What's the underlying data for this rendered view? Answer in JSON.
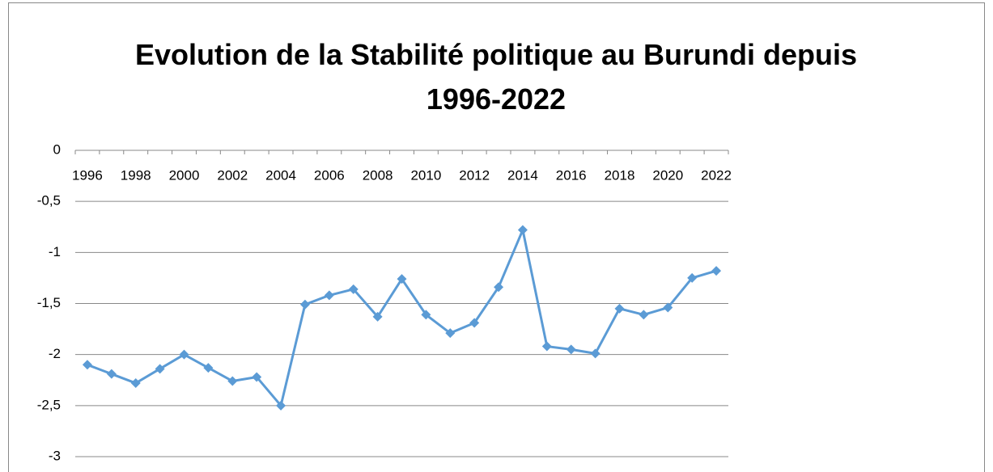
{
  "chart_data": {
    "type": "line",
    "title": "Evolution de la Stabilité politique au Burundi depuis 1996-2022",
    "categories": [
      "1996",
      null,
      "1998",
      null,
      "2000",
      null,
      "2002",
      null,
      "2004",
      null,
      "2006",
      null,
      "2008",
      null,
      "2010",
      null,
      "2012",
      null,
      "2014",
      null,
      "2016",
      null,
      "2018",
      null,
      "2020",
      null,
      "2022"
    ],
    "series": [
      {
        "name": "Stabilité politique",
        "color": "#5b9bd5",
        "values": [
          -2.1,
          -2.19,
          -2.28,
          -2.14,
          -2.0,
          -2.13,
          -2.26,
          -2.22,
          -2.5,
          -1.51,
          -1.42,
          -1.36,
          -1.63,
          -1.26,
          -1.61,
          -1.79,
          -1.69,
          -1.34,
          -0.78,
          -1.92,
          -1.95,
          -1.99,
          -1.55,
          -1.61,
          -1.54,
          -1.25,
          -1.18
        ]
      }
    ],
    "ylim": [
      -3,
      0
    ],
    "yticks": [
      0,
      {
        "value": -0.5,
        "label": "-0,5"
      },
      -1,
      {
        "value": -1.5,
        "label": "-1,5"
      },
      -2,
      {
        "value": -2.5,
        "label": "-2,5"
      },
      -3
    ],
    "grid": true
  }
}
